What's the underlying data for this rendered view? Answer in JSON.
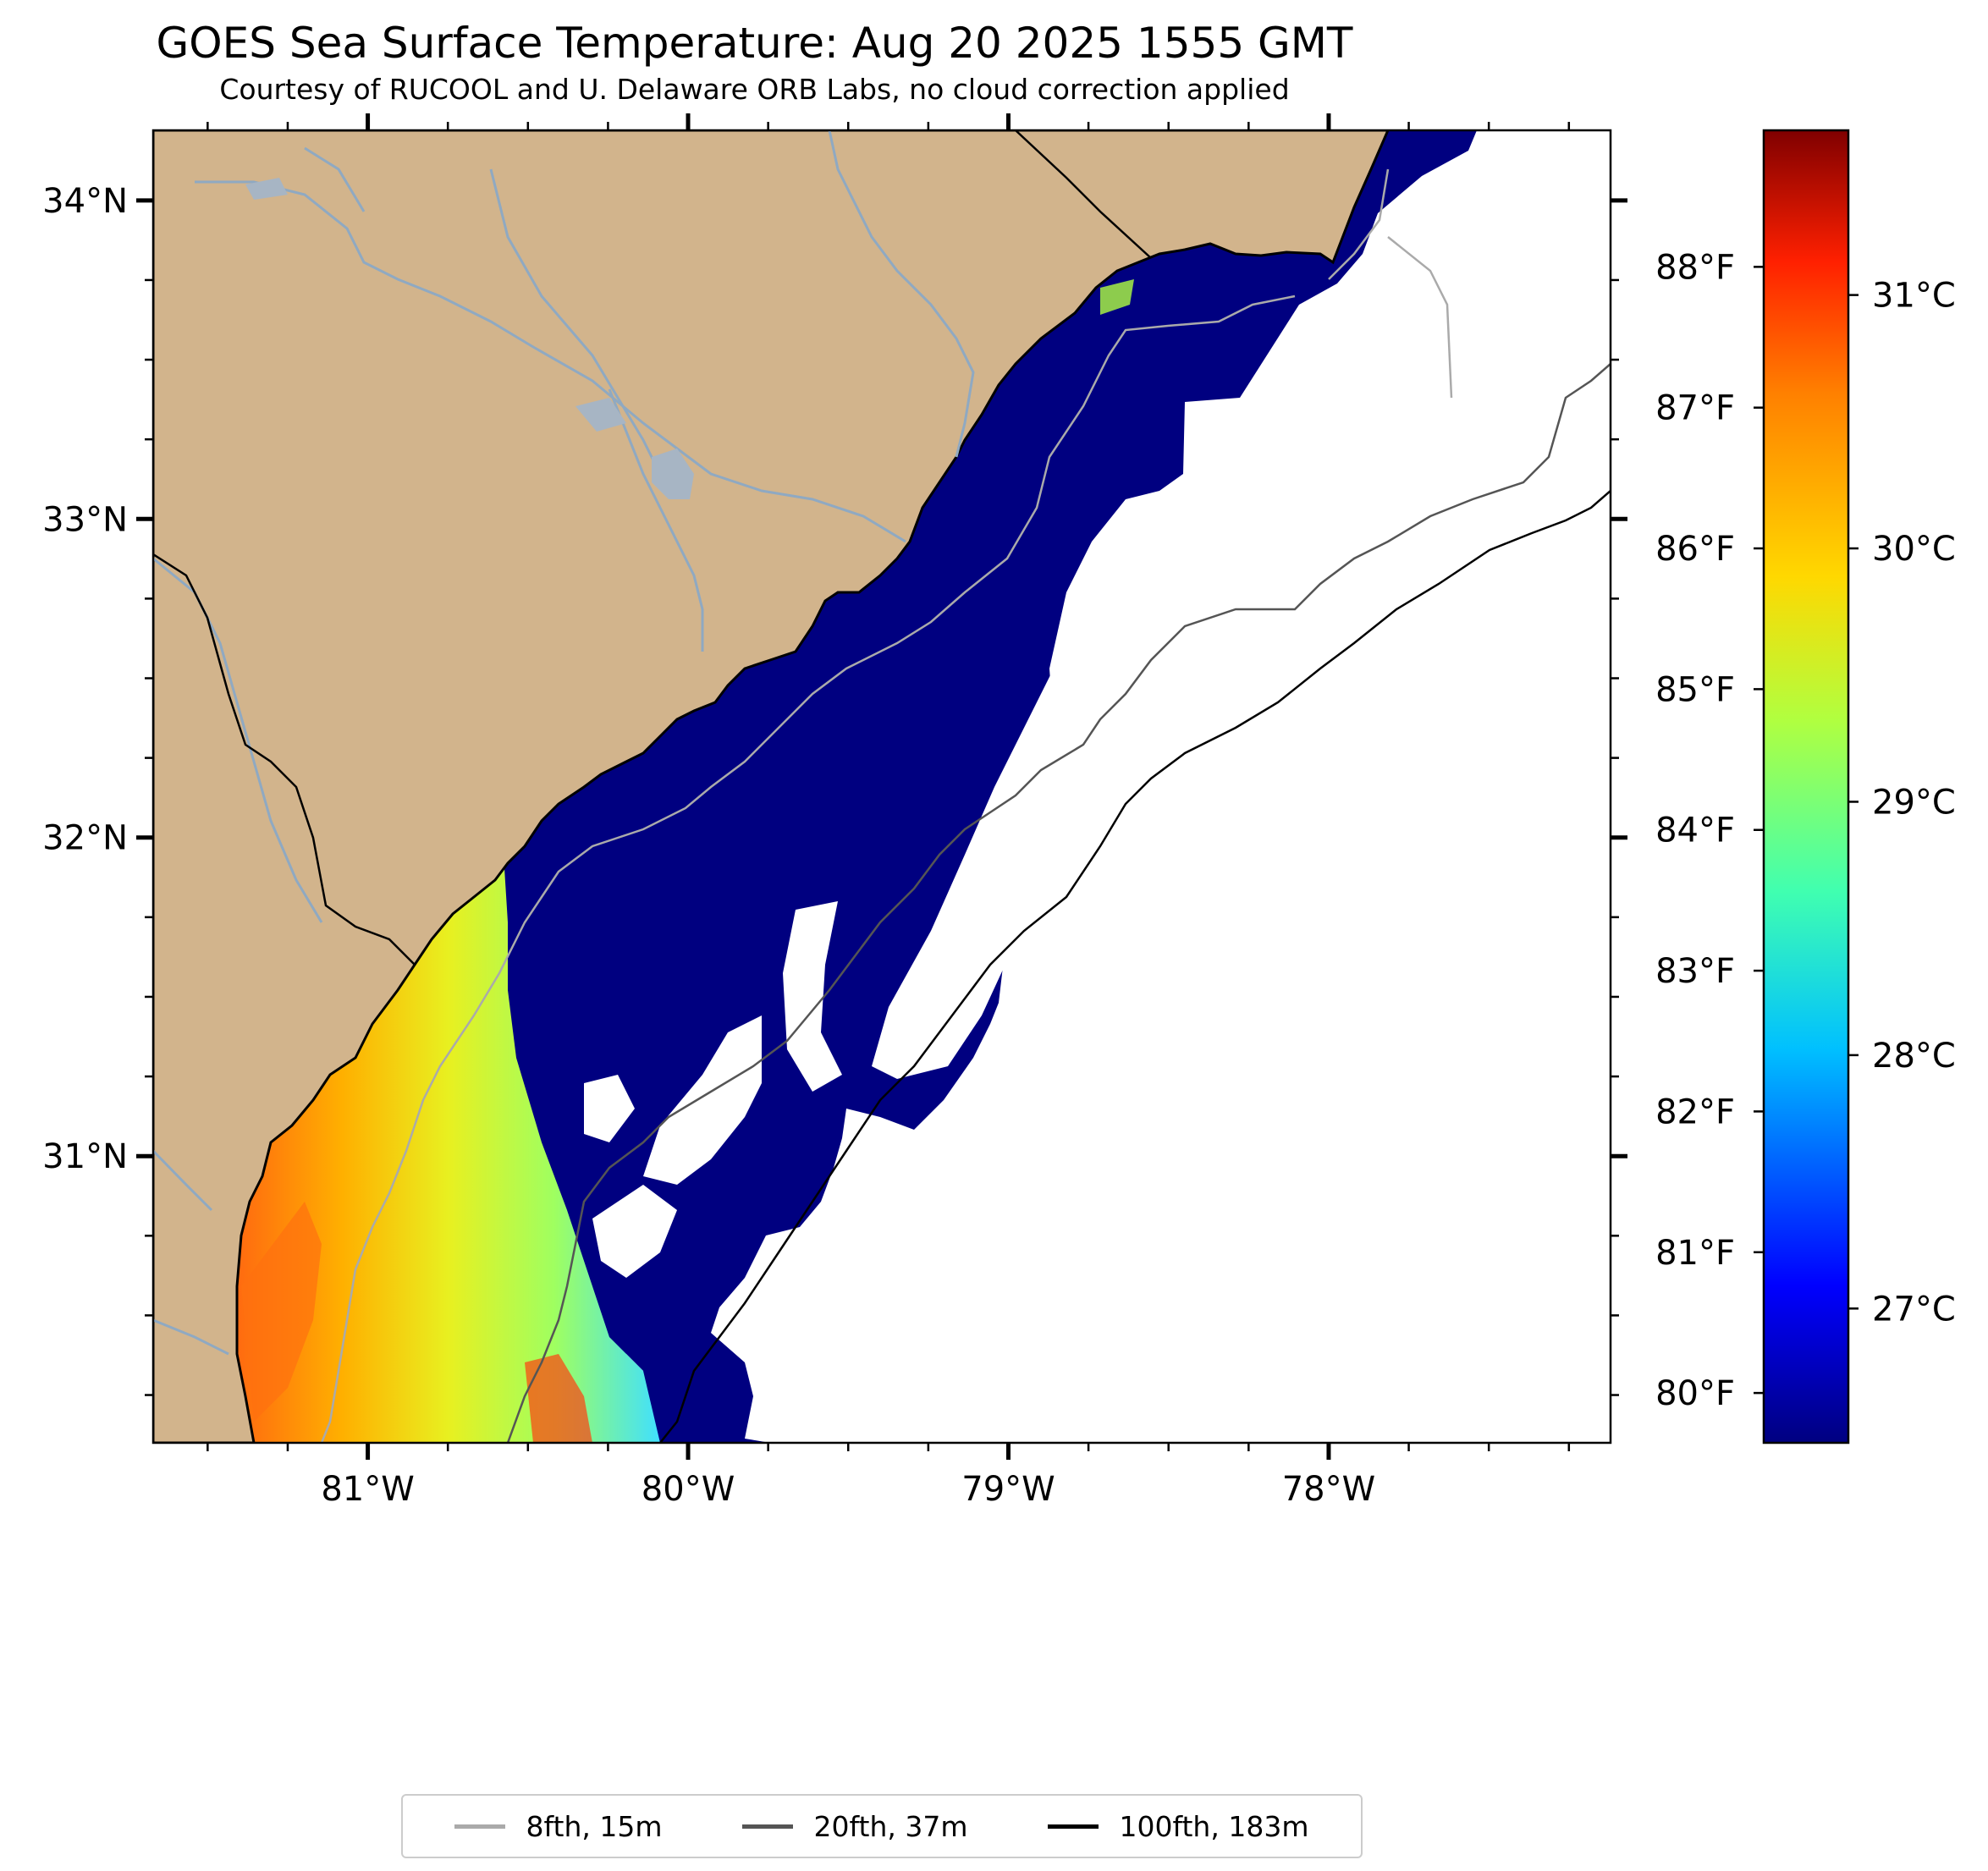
{
  "title": "GOES Sea Surface Temperature: Aug 20 2025 1555 GMT",
  "subtitle": "Courtesy of RUCOOL and U. Delaware ORB Labs, no cloud correction applied",
  "map": {
    "lon_range": [
      -81.67,
      -77.12
    ],
    "lat_range": [
      30.1,
      34.22
    ],
    "lon_ticks": [
      {
        "value": -81,
        "label": "81°W"
      },
      {
        "value": -80,
        "label": "80°W"
      },
      {
        "value": -79,
        "label": "79°W"
      },
      {
        "value": -78,
        "label": "78°W"
      }
    ],
    "lat_ticks": [
      {
        "value": 34,
        "label": "34°N"
      },
      {
        "value": 33,
        "label": "33°N"
      },
      {
        "value": 32,
        "label": "32°N"
      },
      {
        "value": 31,
        "label": "31°N"
      }
    ],
    "land_color": "#d2b48c",
    "ocean_color": "#ffffff",
    "cold_water_color": "#000080",
    "river_color": "#8fa9c2"
  },
  "colorbar": {
    "celsius_range": [
      26.47,
      31.65
    ],
    "celsius_ticks": [
      {
        "value": 27,
        "label": "27°C"
      },
      {
        "value": 28,
        "label": "28°C"
      },
      {
        "value": 29,
        "label": "29°C"
      },
      {
        "value": 30,
        "label": "30°C"
      },
      {
        "value": 31,
        "label": "31°C"
      }
    ],
    "fahrenheit_ticks": [
      {
        "value": 80,
        "label": "80°F"
      },
      {
        "value": 81,
        "label": "81°F"
      },
      {
        "value": 82,
        "label": "82°F"
      },
      {
        "value": 83,
        "label": "83°F"
      },
      {
        "value": 84,
        "label": "84°F"
      },
      {
        "value": 85,
        "label": "85°F"
      },
      {
        "value": 86,
        "label": "86°F"
      },
      {
        "value": 87,
        "label": "87°F"
      },
      {
        "value": 88,
        "label": "88°F"
      }
    ],
    "colormap": "jet",
    "gradient_stops": [
      "#000080",
      "#0000ff",
      "#00c0ff",
      "#40ffb0",
      "#b0ff40",
      "#ffd800",
      "#ff8000",
      "#ff2000",
      "#800000"
    ]
  },
  "legend": [
    {
      "label": "8fth, 15m",
      "color": "#aaaaaa"
    },
    {
      "label": "20fth, 37m",
      "color": "#555555"
    },
    {
      "label": "100fth, 183m",
      "color": "#000000"
    }
  ]
}
